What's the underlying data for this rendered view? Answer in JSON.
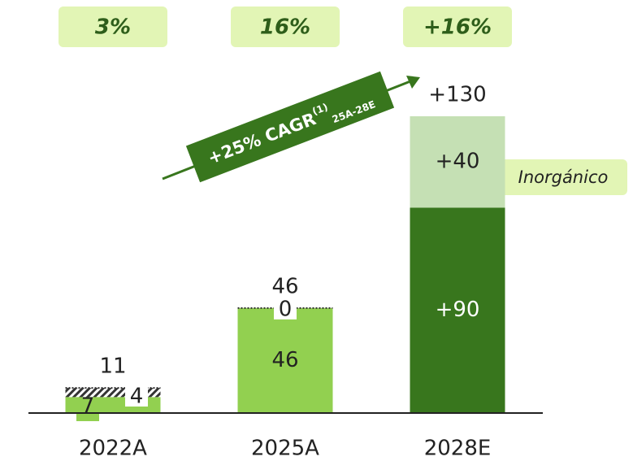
{
  "chart_data": {
    "type": "stacked-bar",
    "categories": [
      "2022A",
      "2025A",
      "2028E"
    ],
    "badges": [
      "3%",
      "16%",
      "+16%"
    ],
    "series": [
      {
        "values": [
          7,
          46,
          90
        ],
        "value_labels": [
          "7",
          "46",
          "+90"
        ],
        "colors": [
          "#92d050",
          "#92d050",
          "#38761d"
        ],
        "hatched": [
          false,
          false,
          false
        ]
      },
      {
        "values": [
          4,
          0,
          40
        ],
        "value_labels": [
          "4",
          "0",
          "+40"
        ],
        "colors": [
          "#92d050",
          "#92d050",
          "#c5e0b4"
        ],
        "hatched": [
          true,
          true,
          false
        ]
      }
    ],
    "totals": {
      "values": [
        11,
        46,
        130
      ],
      "value_labels": [
        "11",
        "46",
        "+130"
      ]
    },
    "ylim": [
      0,
      130
    ],
    "cagr": {
      "text": "+25% CAGR",
      "sup": "(1)",
      "sub": "25A-28E"
    },
    "annotation": "Inorgánico"
  }
}
